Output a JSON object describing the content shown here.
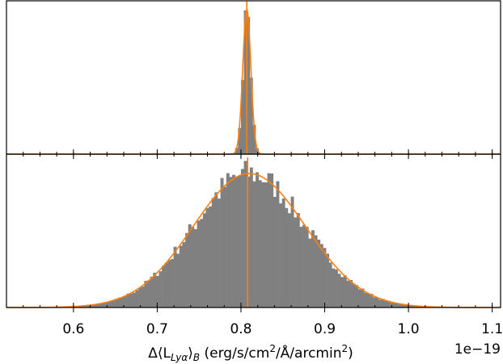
{
  "chart_data": [
    {
      "type": "histogram",
      "panel": "top",
      "xlim": [
        0.52,
        1.11
      ],
      "x_scale_label": "1e−19",
      "peak_center": 0.807,
      "peak_sigma": 0.0048,
      "vertical_line_x": 0.807,
      "fit_curve": "gaussian",
      "bin_width": 0.0035,
      "hist_color": "#808080",
      "fit_color": "#ff7f0e",
      "y_ticks_shown": false
    },
    {
      "type": "histogram",
      "panel": "bottom",
      "xlim": [
        0.52,
        1.11
      ],
      "x_ticks": [
        0.6,
        0.7,
        0.8,
        0.9,
        1.0,
        1.1
      ],
      "x_tick_labels": [
        "0.6",
        "0.7",
        "0.8",
        "0.9",
        "1.0",
        "1.1"
      ],
      "xlabel": "Δ⟨L_{Lyα}⟩_B (erg/s/cm²/Å/arcmin²)",
      "x_scale_label": "1e−19",
      "peak_center": 0.81,
      "peak_sigma": 0.067,
      "vertical_line_x": 0.808,
      "fit_curve": "gaussian",
      "bin_width": 0.0035,
      "hist_color": "#808080",
      "fit_color": "#ff7f0e",
      "y_ticks_shown": false
    }
  ],
  "labels": {
    "xlabel_prefix": "Δ⟨L",
    "xlabel_sub": "Lyα",
    "xlabel_bracket": "⟩",
    "xlabel_sub2": "B",
    "xlabel_units_a": " (erg/s/cm",
    "xlabel_sup": "2",
    "xlabel_units_b": "/Å/arcmin",
    "xlabel_sup2": "2",
    "xlabel_close": ")",
    "offset": "1e−19"
  }
}
